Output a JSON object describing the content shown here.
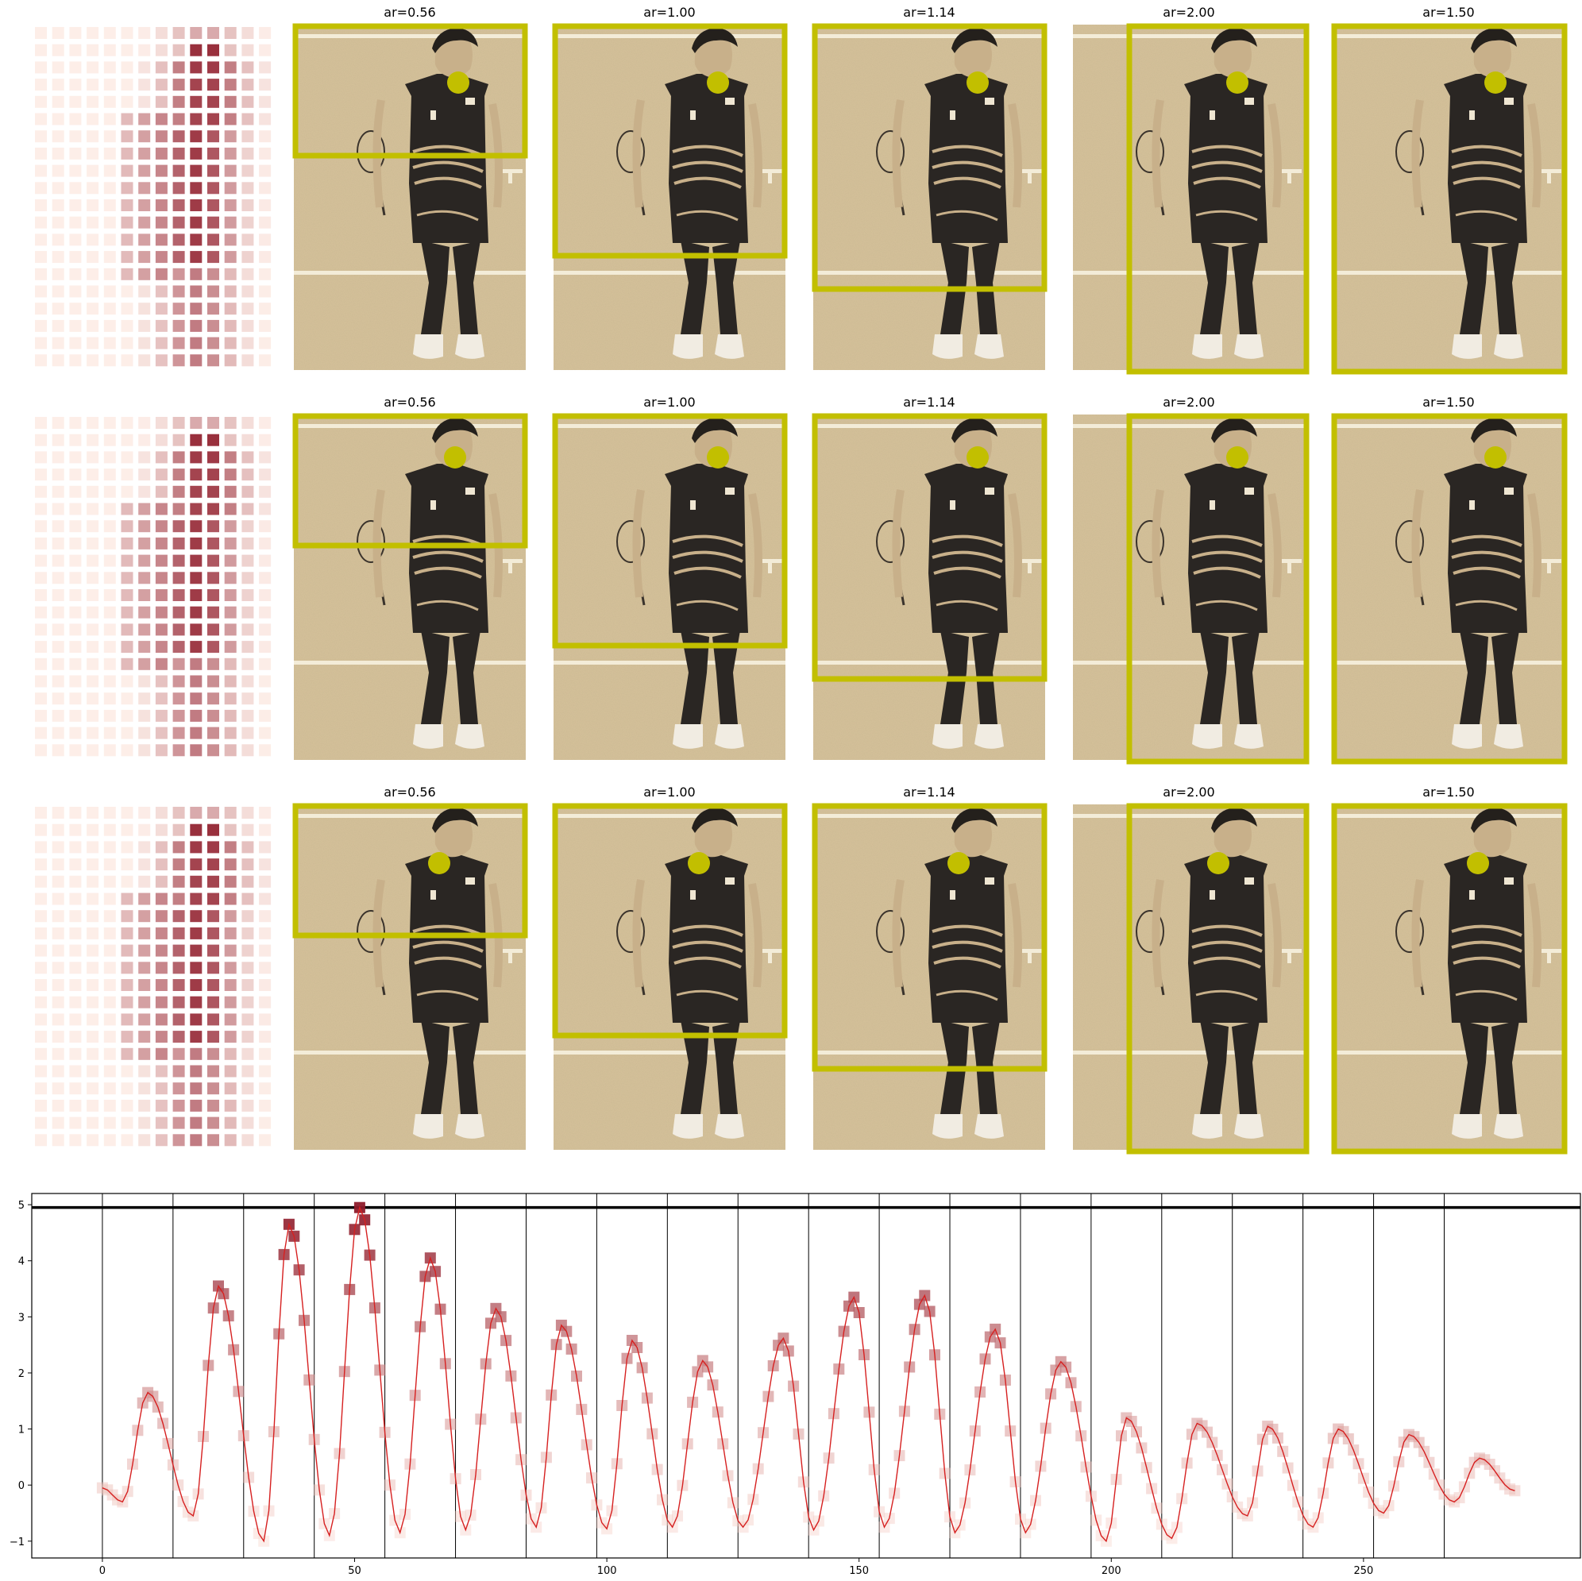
{
  "colors": {
    "box": "#c2bf00",
    "line": "#d62020",
    "heat_low": "#fff2ec",
    "heat_high": "#8e1a2a",
    "photo_bg": "#d6c29a",
    "jersey": "#2a2623"
  },
  "panels": {
    "row_count": 3,
    "title_prefix": "ar=",
    "titles": [
      "ar=0.56",
      "ar=1.00",
      "ar=1.14",
      "ar=2.00",
      "ar=1.50"
    ],
    "aspect_ratios": [
      0.56,
      1.0,
      1.14,
      2.0,
      1.5
    ],
    "heatmap_icon": "heatmap-grid",
    "photo_icon": "badminton-player-photo",
    "marker_icon": "yellow-dot"
  },
  "chart_data": {
    "type": "line",
    "title": "",
    "xlabel": "",
    "ylabel": "",
    "xlim": [
      -14,
      293
    ],
    "ylim": [
      -1.3,
      5.2
    ],
    "xticks": [
      0,
      50,
      100,
      150,
      200,
      250
    ],
    "yticks": [
      -1,
      0,
      1,
      2,
      3,
      4,
      5
    ],
    "hline": 4.95,
    "vlines": [
      0,
      14,
      28,
      42,
      56,
      70,
      84,
      98,
      112,
      126,
      140,
      154,
      168,
      182,
      196,
      210,
      224,
      238,
      252,
      266
    ],
    "grid": false,
    "legend": "none",
    "peaks": [
      {
        "x": 9,
        "y": 1.65
      },
      {
        "x": 23,
        "y": 3.55
      },
      {
        "x": 37,
        "y": 4.65
      },
      {
        "x": 51,
        "y": 4.95
      },
      {
        "x": 65,
        "y": 4.05
      },
      {
        "x": 78,
        "y": 3.15
      },
      {
        "x": 91,
        "y": 2.85
      },
      {
        "x": 105,
        "y": 2.58
      },
      {
        "x": 119,
        "y": 2.22
      },
      {
        "x": 135,
        "y": 2.62
      },
      {
        "x": 149,
        "y": 3.35
      },
      {
        "x": 163,
        "y": 3.38
      },
      {
        "x": 177,
        "y": 2.78
      },
      {
        "x": 190,
        "y": 2.2
      },
      {
        "x": 203,
        "y": 1.2
      },
      {
        "x": 217,
        "y": 1.1
      },
      {
        "x": 231,
        "y": 1.05
      },
      {
        "x": 245,
        "y": 1.0
      },
      {
        "x": 259,
        "y": 0.9
      },
      {
        "x": 273,
        "y": 0.48
      }
    ],
    "troughs": [
      {
        "x": 4,
        "y": -0.3
      },
      {
        "x": 18,
        "y": -0.55
      },
      {
        "x": 32,
        "y": -1.0
      },
      {
        "x": 45,
        "y": -0.9
      },
      {
        "x": 59,
        "y": -0.85
      },
      {
        "x": 72,
        "y": -0.8
      },
      {
        "x": 86,
        "y": -0.75
      },
      {
        "x": 100,
        "y": -0.78
      },
      {
        "x": 113,
        "y": -0.75
      },
      {
        "x": 127,
        "y": -0.75
      },
      {
        "x": 141,
        "y": -0.8
      },
      {
        "x": 155,
        "y": -0.75
      },
      {
        "x": 169,
        "y": -0.85
      },
      {
        "x": 183,
        "y": -0.85
      },
      {
        "x": 199,
        "y": -1.0
      },
      {
        "x": 212,
        "y": -0.95
      },
      {
        "x": 227,
        "y": -0.55
      },
      {
        "x": 240,
        "y": -0.75
      },
      {
        "x": 254,
        "y": -0.5
      },
      {
        "x": 268,
        "y": -0.3
      }
    ],
    "x_start": 0,
    "x_end": 280,
    "y_start": -0.05,
    "y_end": -0.1
  }
}
